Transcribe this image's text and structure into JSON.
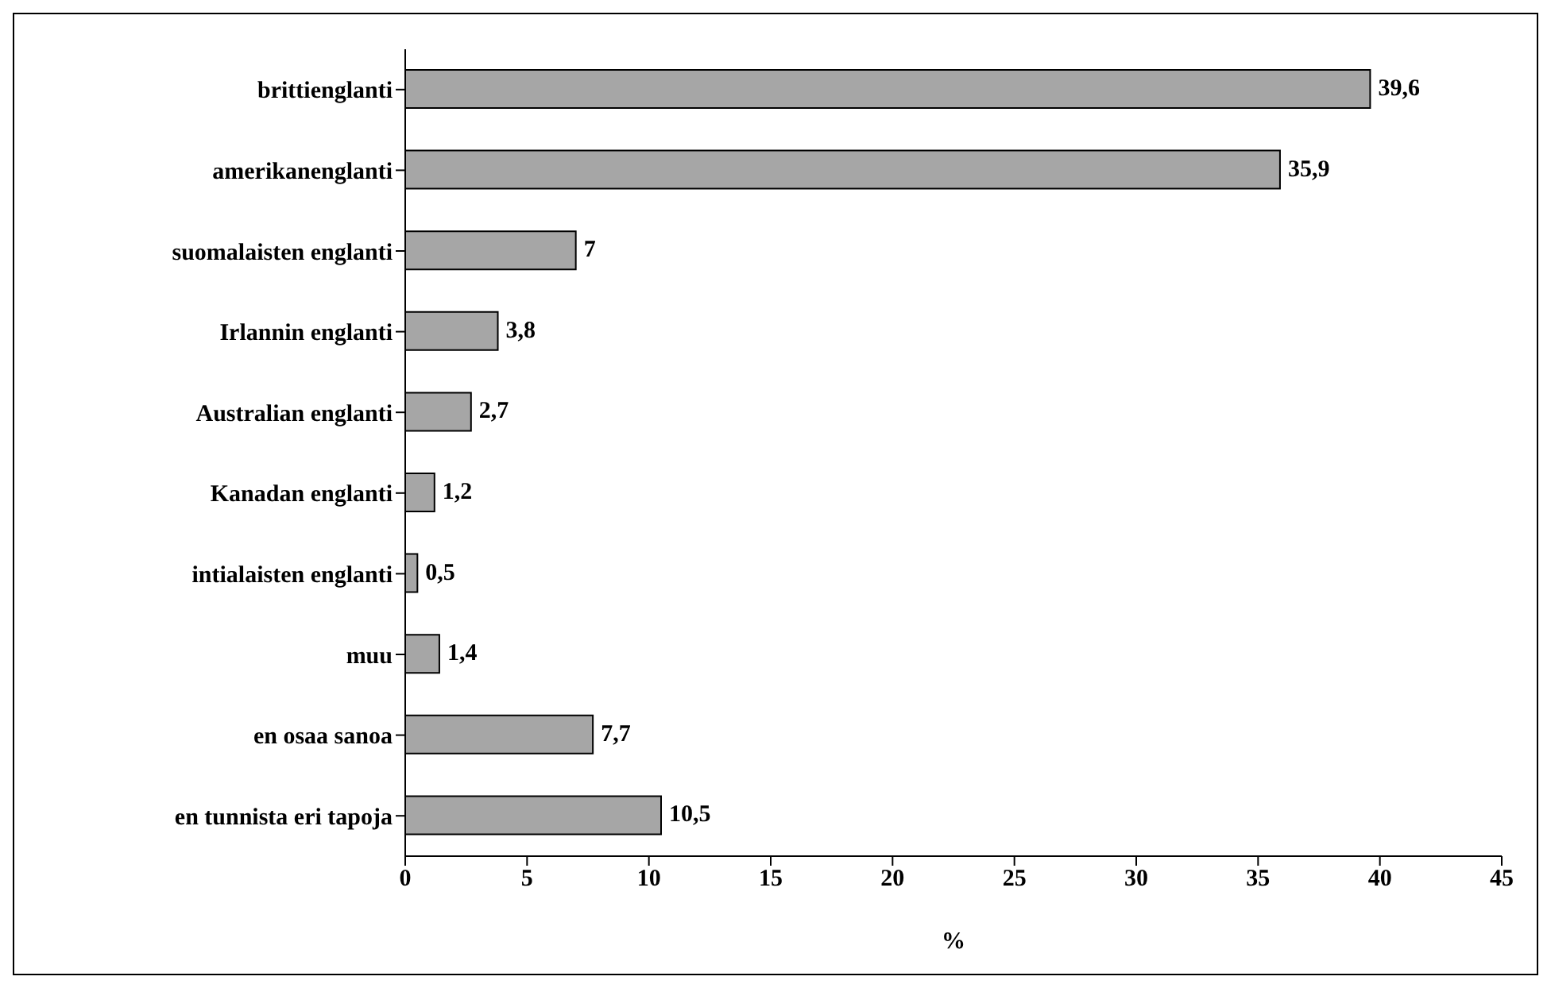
{
  "chart_data": {
    "type": "bar",
    "orientation": "horizontal",
    "xlabel": "%",
    "categories": [
      "brittienglanti",
      "amerikanenglanti",
      "suomalaisten englanti",
      "Irlannin englanti",
      "Australian englanti",
      "Kanadan englanti",
      "intialaisten englanti",
      "muu",
      "en osaa sanoa",
      "en tunnista eri tapoja"
    ],
    "values": [
      39.6,
      35.9,
      7,
      3.8,
      2.7,
      1.2,
      0.5,
      1.4,
      7.7,
      10.5
    ],
    "value_labels": [
      "39,6",
      "35,9",
      "7",
      "3,8",
      "2,7",
      "1,2",
      "0,5",
      "1,4",
      "7,7",
      "10,5"
    ],
    "color": "#a6a6a6",
    "xlim": [
      0,
      45
    ],
    "xticks": [
      0,
      5,
      10,
      15,
      20,
      25,
      30,
      35,
      40,
      45
    ],
    "grid": false,
    "legend": false
  }
}
